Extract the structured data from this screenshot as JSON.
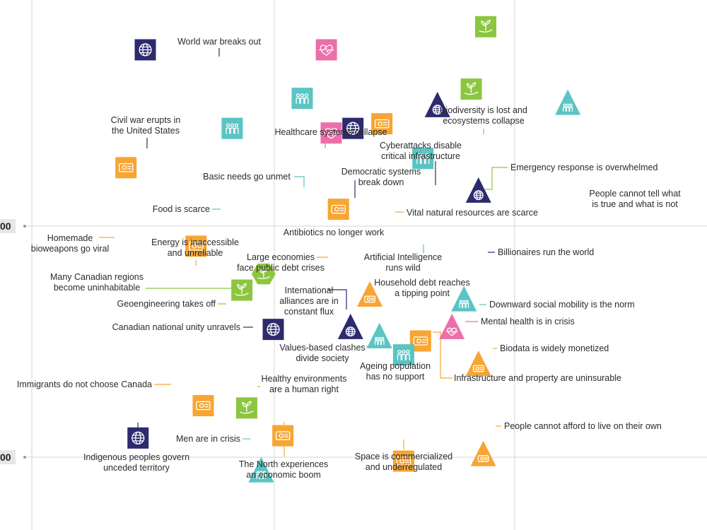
{
  "colors": {
    "cat_geopolitics": "#2d2a6e",
    "cat_economy": "#f7a533",
    "cat_health": "#ec6fa9",
    "cat_environment": "#8cc63f",
    "cat_society": "#5bc4c4"
  },
  "chart_data": {
    "type": "scatter",
    "title": "",
    "xlabel": "",
    "ylabel": "",
    "grid": true,
    "y_tick_labels": [
      "00",
      "00"
    ],
    "points": [
      {
        "id": "p1",
        "label": "World war breaks out",
        "category": "geopolitics",
        "shape": "square",
        "icon": "globe-icon",
        "x": 0.79,
        "y": 3.26
      },
      {
        "id": "p2",
        "label": "Civil war erupts in the United States",
        "category": "geopolitics",
        "shape": "square",
        "icon": "globe-icon",
        "x": 0.47,
        "y": 2.76
      },
      {
        "id": "p3",
        "label": "Biodiversity is lost and ecosystems collapse",
        "category": "environment",
        "shape": "square",
        "icon": "plant-hand-icon",
        "x": 1.88,
        "y": 2.86
      },
      {
        "id": "p4",
        "label": "Healthcare systems collapse",
        "category": "health",
        "shape": "square",
        "icon": "heartbeat-icon",
        "x": 1.22,
        "y": 2.76
      },
      {
        "id": "p5",
        "label": "Cyberattacks disable critical infrastructure",
        "category": "geopolitics",
        "shape": "triangle",
        "icon": "globe-icon",
        "x": 1.68,
        "y": 2.51
      },
      {
        "id": "p6",
        "label": "Emergency response is overwhelmed",
        "category": "environment",
        "shape": "square",
        "icon": "plant-hand-icon",
        "x": 1.82,
        "y": 2.59
      },
      {
        "id": "p7",
        "label": "People cannot tell what is true and what is not",
        "category": "society",
        "shape": "triangle",
        "icon": "people-icon",
        "x": 2.22,
        "y": 2.52
      },
      {
        "id": "p8",
        "label": "Basic needs go unmet",
        "category": "society",
        "shape": "square",
        "icon": "people-icon",
        "x": 1.12,
        "y": 2.55
      },
      {
        "id": "p9",
        "label": "Democratic systems break down",
        "category": "geopolitics",
        "shape": "square",
        "icon": "globe-icon",
        "x": 1.33,
        "y": 2.42
      },
      {
        "id": "p10",
        "label": "Food is scarce",
        "category": "society",
        "shape": "square",
        "icon": "people-icon",
        "x": 0.83,
        "y": 2.42
      },
      {
        "id": "p11",
        "label": "Vital natural resources are scarce",
        "category": "economy",
        "shape": "square",
        "icon": "money-icon",
        "x": 1.45,
        "y": 2.44
      },
      {
        "id": "p12",
        "label": "Antibiotics no longer work",
        "category": "health",
        "shape": "square",
        "icon": "heartbeat-icon",
        "x": 1.24,
        "y": 2.4
      },
      {
        "id": "p13",
        "label": "Homemade bioweapons go viral",
        "category": "economy",
        "shape": "square",
        "icon": "money-icon",
        "x": 0.39,
        "y": 2.25
      },
      {
        "id": "p14",
        "label": "Artificial Intelligence runs wild",
        "category": "society",
        "shape": "square",
        "icon": "people-icon",
        "x": 1.62,
        "y": 2.29
      },
      {
        "id": "p15",
        "label": "Billionaires run the world",
        "category": "geopolitics",
        "shape": "triangle",
        "icon": "globe-icon",
        "x": 1.85,
        "y": 2.14
      },
      {
        "id": "p16",
        "label": "Energy is inaccessible and unreliable",
        "category": "economy",
        "shape": "square",
        "icon": "money-icon",
        "x": 0.68,
        "y": 1.91
      },
      {
        "id": "p17",
        "label": "Large economies face public debt crises",
        "category": "economy",
        "shape": "square",
        "icon": "money-icon",
        "x": 1.27,
        "y": 2.07
      },
      {
        "id": "p18",
        "label": "Many Canadian regions become uninhabitable",
        "category": "environment",
        "shape": "hexagon",
        "icon": "plant-hand-icon",
        "x": 0.96,
        "y": 1.79
      },
      {
        "id": "p19",
        "label": "Geoengineering takes off",
        "category": "environment",
        "shape": "square",
        "icon": "plant-hand-icon",
        "x": 0.87,
        "y": 1.72
      },
      {
        "id": "p20",
        "label": "Household debt reaches a tipping point",
        "category": "economy",
        "shape": "triangle",
        "icon": "money-icon",
        "x": 1.4,
        "y": 1.69
      },
      {
        "id": "p21",
        "label": "Downward social mobility is the norm",
        "category": "society",
        "shape": "triangle",
        "icon": "people-icon",
        "x": 1.79,
        "y": 1.67
      },
      {
        "id": "p22",
        "label": "International alliances are in constant flux",
        "category": "geopolitics",
        "shape": "triangle",
        "icon": "globe-icon",
        "x": 1.32,
        "y": 1.55
      },
      {
        "id": "p23",
        "label": "Mental health is in crisis",
        "category": "health",
        "shape": "triangle",
        "icon": "heartbeat-icon",
        "x": 1.74,
        "y": 1.55
      },
      {
        "id": "p24",
        "label": "Canadian national unity unravels",
        "category": "geopolitics",
        "shape": "square",
        "icon": "globe-icon",
        "x": 1.0,
        "y": 1.55
      },
      {
        "id": "p25",
        "label": "Values-based clashes divide society",
        "category": "society",
        "shape": "triangle",
        "icon": "people-icon",
        "x": 1.44,
        "y": 1.51
      },
      {
        "id": "p26",
        "label": "Infrastructure and property are uninsurable",
        "category": "economy",
        "shape": "square",
        "icon": "money-icon",
        "x": 1.61,
        "y": 1.5
      },
      {
        "id": "p27",
        "label": "Ageing population has no support",
        "category": "society",
        "shape": "square",
        "icon": "people-icon",
        "x": 1.54,
        "y": 1.44
      },
      {
        "id": "p28",
        "label": "Biodata is widely monetized",
        "category": "economy",
        "shape": "triangle",
        "icon": "money-icon",
        "x": 1.85,
        "y": 1.39
      },
      {
        "id": "p29",
        "label": "Immigrants do not choose Canada",
        "category": "economy",
        "shape": "square",
        "icon": "money-icon",
        "x": 0.71,
        "y": 1.22
      },
      {
        "id": "p30",
        "label": "Healthy environments are a human right",
        "category": "environment",
        "shape": "square",
        "icon": "plant-hand-icon",
        "x": 0.89,
        "y": 1.21
      },
      {
        "id": "p31",
        "label": "Indigenous peoples govern unceded territory",
        "category": "geopolitics",
        "shape": "square",
        "icon": "globe-icon",
        "x": 0.44,
        "y": 1.08
      },
      {
        "id": "p32",
        "label": "The North experiences an economic boom",
        "category": "economy",
        "shape": "square",
        "icon": "money-icon",
        "x": 1.04,
        "y": 1.09
      },
      {
        "id": "p33",
        "label": "People cannot afford to live on their own",
        "category": "economy",
        "shape": "triangle",
        "icon": "money-icon",
        "x": 1.87,
        "y": 1.0
      },
      {
        "id": "p34",
        "label": "Space is commercialized and underregulated",
        "category": "economy",
        "shape": "square",
        "icon": "money-icon",
        "x": 1.54,
        "y": 0.98
      },
      {
        "id": "p35",
        "label": "Men are in crisis",
        "category": "society",
        "shape": "triangle",
        "icon": "people-icon",
        "x": 0.95,
        "y": 0.93
      }
    ]
  }
}
